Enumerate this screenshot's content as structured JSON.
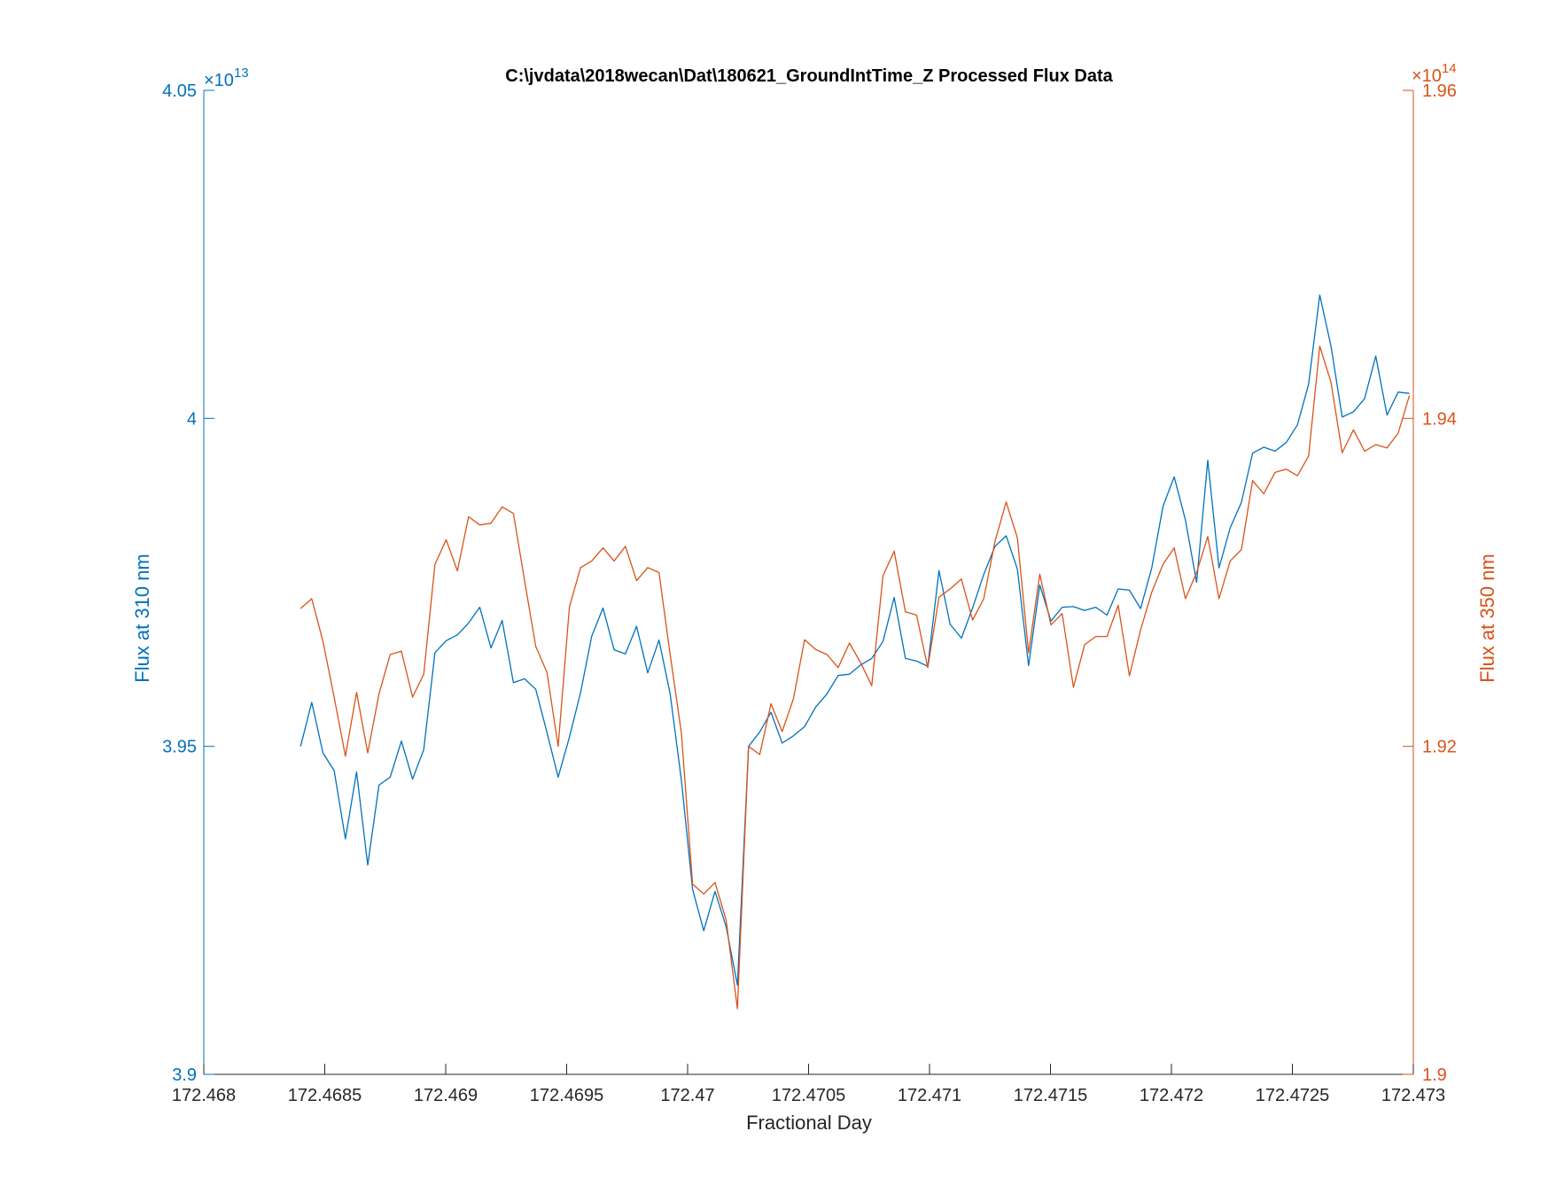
{
  "chart_data": {
    "type": "line",
    "title": "C:\\jvdata\\2018wecan\\Dat\\180621_GroundIntTime_Z Processed Flux Data",
    "xlabel": "Fractional Day",
    "ylabel_left": "Flux at 310 nm",
    "ylabel_right": "Flux at 350 nm",
    "xlim": [
      172.468,
      172.473
    ],
    "ylim_left": [
      3.9,
      4.05
    ],
    "ylim_right": [
      1.9,
      1.96
    ],
    "left_exponent_base": "×10",
    "left_exponent_power": "13",
    "right_exponent_base": "×10",
    "right_exponent_power": "14",
    "x_ticks": [
      172.468,
      172.4685,
      172.469,
      172.4695,
      172.47,
      172.4705,
      172.471,
      172.4715,
      172.472,
      172.4725,
      172.473
    ],
    "x_tick_labels": [
      "172.468",
      "172.4685",
      "172.469",
      "172.4695",
      "172.47",
      "172.4705",
      "172.471",
      "172.4715",
      "172.472",
      "172.4725",
      "172.473"
    ],
    "y_left_ticks": [
      3.9,
      3.95,
      4.0,
      4.05
    ],
    "y_left_tick_labels": [
      "3.9",
      "3.95",
      "4",
      "4.05"
    ],
    "y_right_ticks": [
      1.9,
      1.92,
      1.94,
      1.96
    ],
    "y_right_tick_labels": [
      "1.9",
      "1.92",
      "1.94",
      "1.96"
    ],
    "grid": false,
    "colors": {
      "left": "#0072BD",
      "right": "#D95319",
      "axis": "#262626"
    },
    "x_start": 172.4684,
    "x_step": 4.63e-05,
    "series": [
      {
        "axis": "left",
        "values": [
          3.95,
          3.9567,
          3.949,
          3.9463,
          3.9359,
          3.9461,
          3.9319,
          3.9441,
          3.9453,
          3.9508,
          3.945,
          3.9495,
          3.9643,
          3.9661,
          3.967,
          3.9688,
          3.9712,
          3.965,
          3.9692,
          3.9597,
          3.9603,
          3.9587,
          3.9521,
          3.9453,
          3.9514,
          3.9582,
          3.9668,
          3.9711,
          3.9647,
          3.9641,
          3.9683,
          3.9612,
          3.9662,
          3.958,
          3.9448,
          3.9282,
          3.9219,
          3.9279,
          3.9225,
          3.9136,
          3.95,
          3.9522,
          3.9552,
          3.9505,
          3.9516,
          3.953,
          3.956,
          3.958,
          3.9608,
          3.961,
          3.9624,
          3.9634,
          3.966,
          3.9727,
          3.9634,
          3.963,
          3.9622,
          3.9768,
          3.9686,
          3.9665,
          3.9711,
          3.9762,
          3.9805,
          3.9821,
          3.977,
          3.9623,
          3.9746,
          3.9691,
          3.9712,
          3.9713,
          3.9707,
          3.9712,
          3.97,
          3.974,
          3.9738,
          3.971,
          3.9772,
          3.9866,
          3.9911,
          3.9845,
          3.975,
          3.9936,
          3.9772,
          3.9833,
          3.9872,
          3.9947,
          3.9956,
          3.995,
          3.9963,
          3.999,
          4.0052,
          4.0188,
          4.011,
          4.0002,
          4.001,
          4.003,
          4.0095,
          4.0005,
          4.004,
          4.0038
        ]
      },
      {
        "axis": "right",
        "values": [
          1.9284,
          1.929,
          1.9264,
          1.923,
          1.9194,
          1.9233,
          1.9196,
          1.9232,
          1.9256,
          1.9258,
          1.923,
          1.9244,
          1.9311,
          1.9326,
          1.9307,
          1.934,
          1.9335,
          1.9336,
          1.9346,
          1.9342,
          1.9301,
          1.9261,
          1.9245,
          1.92,
          1.9285,
          1.9309,
          1.9313,
          1.9321,
          1.9313,
          1.9322,
          1.9301,
          1.9309,
          1.9306,
          1.9256,
          1.9208,
          1.9116,
          1.911,
          1.9117,
          1.9094,
          1.904,
          1.92,
          1.9195,
          1.9226,
          1.9209,
          1.9229,
          1.9265,
          1.9259,
          1.9256,
          1.9248,
          1.9263,
          1.9251,
          1.9237,
          1.9304,
          1.9319,
          1.9282,
          1.928,
          1.9248,
          1.9291,
          1.9296,
          1.9302,
          1.9277,
          1.929,
          1.9325,
          1.9349,
          1.9327,
          1.9257,
          1.9305,
          1.9274,
          1.9281,
          1.9236,
          1.9262,
          1.9267,
          1.9267,
          1.9286,
          1.9243,
          1.9271,
          1.9294,
          1.9311,
          1.9321,
          1.929,
          1.9306,
          1.9328,
          1.929,
          1.9313,
          1.932,
          1.9362,
          1.9354,
          1.9367,
          1.9369,
          1.9365,
          1.9377,
          1.9444,
          1.9422,
          1.9379,
          1.9393,
          1.938,
          1.9384,
          1.9382,
          1.9391,
          1.9414
        ]
      }
    ]
  }
}
